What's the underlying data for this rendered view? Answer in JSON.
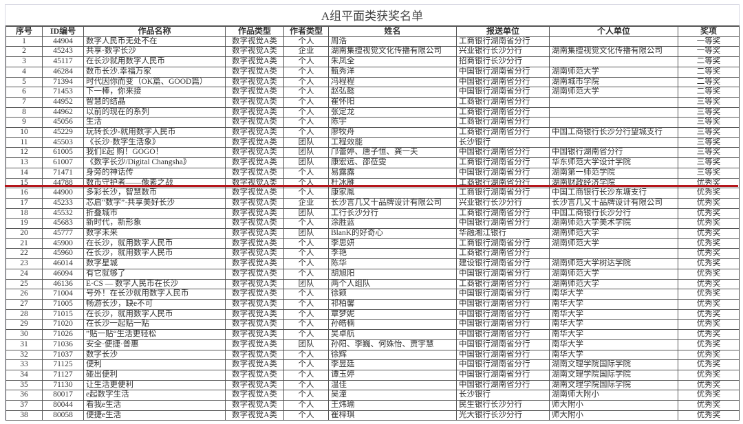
{
  "title": "A组平面类获奖名单",
  "headers": [
    "序号",
    "ID编号",
    "作品名称",
    "作品类型",
    "作者类型",
    "姓名",
    "报送单位",
    "个人单位",
    "奖项"
  ],
  "highlight_color": "#b5161b",
  "rows": [
    [
      "1",
      "44904",
      "数字人民币无处不在",
      "数字视觉A类",
      "个人",
      "周浩",
      "工商银行湖南省分行",
      "",
      "一等奖"
    ],
    [
      "2",
      "45243",
      "共享·数字长沙",
      "数字视觉A类",
      "企业",
      "湖南集擅视觉文化传播有限公司",
      "兴业银行长沙分行",
      "湖南集擅视觉文化传播有限公司",
      "一等奖"
    ],
    [
      "3",
      "45117",
      "在长沙就用数字人民币",
      "数字视觉A类",
      "个人",
      "朱凤全",
      "招商银行长沙分行",
      "",
      "二等奖"
    ],
    [
      "4",
      "46284",
      "数币长沙.幸福万家",
      "数字视觉A类",
      "个人",
      "甄秀洋",
      "中国银行湖南省分行",
      "湖南师范大学",
      "二等奖"
    ],
    [
      "5",
      "71394",
      "时代因你而变（OK篇、GOOD篇）",
      "数字视觉A类",
      "个人",
      "冯程程",
      "中国银行湖南省分行",
      "湖南城市学院",
      "二等奖"
    ],
    [
      "6",
      "71453",
      "下一棒，你来接",
      "数字视觉A类",
      "个人",
      "赵弘懿",
      "中国银行湖南省分行",
      "湖南师范大学",
      "二等奖"
    ],
    [
      "7",
      "44952",
      "智慧的结晶",
      "数字视觉A类",
      "个人",
      "崔怀阳",
      "工商银行湖南省分行",
      "",
      "三等奖"
    ],
    [
      "8",
      "44962",
      "以前的现在的系列",
      "数字视觉A类",
      "个人",
      "张定龙",
      "工商银行湖南省分行",
      "",
      "三等奖"
    ],
    [
      "9",
      "45056",
      "生活",
      "数字视觉A类",
      "个人",
      "陈宇",
      "工商银行湖南省分行",
      "",
      "三等奖"
    ],
    [
      "10",
      "45229",
      "玩转长沙-就用数字人民币",
      "数字视觉A类",
      "个人",
      "廖牧舟",
      "工商银行湖南省分行",
      "中国工商银行长沙分行望城支行",
      "三等奖"
    ],
    [
      "11",
      "45503",
      "《长沙·数字生活象》",
      "数字视觉A类",
      "团队",
      "工程效能",
      "长沙银行",
      "",
      "三等奖"
    ],
    [
      "12",
      "61005",
      "我们E起 购！GOGO！",
      "数字视觉A类",
      "团队",
      "邝蕾婷、唐子恒、龚一夫",
      "中国银行湖南省分行",
      "中国银行湖南省分行",
      "三等奖"
    ],
    [
      "13",
      "61007",
      "《数字长沙/Digital Changsha》",
      "数字视觉A类",
      "团队",
      "康宏远、邵莅雯",
      "工商银行湖南省分行",
      "华东师范大学设计学院",
      "三等奖"
    ],
    [
      "14",
      "71471",
      "身旁的神话传",
      "数字视觉A类",
      "个人",
      "易露露",
      "中国银行湖南省分行",
      "湖南第一师范学院",
      "三等奖"
    ],
    [
      "15",
      "44788",
      "数币守护者——像素之战",
      "数字视觉A类",
      "个人",
      "杜冰雁",
      "工商银行湖南省分行",
      "湖南财政经济学院",
      "优秀奖"
    ],
    [
      "16",
      "44900",
      "多彩长沙，智慧数币",
      "数字视觉A类",
      "个人",
      "康家胤",
      "工商银行湖南省分行",
      "中国工商银行长沙东塘支行",
      "优秀奖"
    ],
    [
      "17",
      "45233",
      "芯启“数字”·共享美好长沙",
      "数字视觉A类",
      "企业",
      "长沙言几又十品牌设计有限公司",
      "兴业银行长沙分行",
      "长沙言几又十品牌设计有限公司",
      "优秀奖"
    ],
    [
      "18",
      "45532",
      "折叠城市",
      "数字视觉A类",
      "团队",
      "工行长沙分行",
      "工商银行湖南省分行",
      "中国工商银行长沙分行",
      "优秀奖"
    ],
    [
      "19",
      "45683",
      "新时代，新形象",
      "数字视觉A类",
      "个人",
      "涂胜蓝",
      "中国银行湖南省分行",
      "湖南师范大学美术学院",
      "优秀奖"
    ],
    [
      "20",
      "45777",
      "数字未来",
      "数字视觉A类",
      "团队",
      "BlanK的好奇心",
      "华融湘江银行",
      "湖南师范大学",
      "优秀奖"
    ],
    [
      "21",
      "45900",
      "在长沙，就用数字人民币",
      "数字视觉A类",
      "个人",
      "李思妍",
      "工商银行湖南省分行",
      "湖南师范大学",
      "优秀奖"
    ],
    [
      "22",
      "45960",
      "在长沙，就用数字人民币",
      "数字视觉A类",
      "个人",
      "李艳",
      "工商银行湖南省分行",
      "",
      "优秀奖"
    ],
    [
      "23",
      "46014",
      "数字星城",
      "数字视觉A类",
      "个人",
      "陈华",
      "建设银行湖南省分行",
      "湖南师范大学树达学院",
      "优秀奖"
    ],
    [
      "24",
      "46094",
      "有它就够了",
      "数字视觉A类",
      "个人",
      "胡旭阳",
      "中国银行湖南省分行",
      "湖南师范大学",
      "优秀奖"
    ],
    [
      "25",
      "46136",
      "E·CS — 数字人民币在长沙",
      "数字视觉A类",
      "团队",
      "两个人组队",
      "工商银行湖南省分行",
      "湖南师范大学",
      "优秀奖"
    ],
    [
      "26",
      "71004",
      "号外！在长沙就用数字人民币",
      "数字视觉A类",
      "个人",
      "徐颖",
      "中国银行湖南省分行",
      "南华大学",
      "优秀奖"
    ],
    [
      "27",
      "71005",
      "畅游长沙，缺e不可",
      "数字视觉A类",
      "个人",
      "祁柏馨",
      "中国银行湖南省分行",
      "南华大学",
      "优秀奖"
    ],
    [
      "28",
      "71015",
      "在长沙，就用数字人民币",
      "数字视觉A类",
      "个人",
      "覃梦妮",
      "中国银行湖南省分行",
      "南华大学",
      "优秀奖"
    ],
    [
      "29",
      "71020",
      "在长沙一起贴一贴",
      "数字视觉A类",
      "个人",
      "孙皓楠",
      "中国银行湖南省分行",
      "南华大学",
      "优秀奖"
    ],
    [
      "30",
      "71026",
      "”贴一贴“生活更轻松",
      "数字视觉A类",
      "个人",
      "吴卓航",
      "中国银行湖南省分行",
      "南华大学",
      "优秀奖"
    ],
    [
      "31",
      "71036",
      "安全·便捷·普惠",
      "数字视觉A类",
      "团队",
      "孙阳、李巍、何姝怡、贾宇慧",
      "中国银行湖南省分行",
      "南华大学",
      "优秀奖"
    ],
    [
      "32",
      "71037",
      "数字长沙",
      "数字视觉A类",
      "个人",
      "徐辉",
      "中国银行湖南省分行",
      "南华大学",
      "优秀奖"
    ],
    [
      "33",
      "71125",
      "便利",
      "数字视觉A类",
      "个人",
      "李昱廷",
      "中国银行湖南省分行",
      "湖南文理学院国际学院",
      "优秀奖"
    ],
    [
      "34",
      "71127",
      "碰出便利",
      "数字视觉A类",
      "个人",
      "谭玉婷",
      "中国银行湖南省分行",
      "湖南文理学院国际学院",
      "优秀奖"
    ],
    [
      "35",
      "71130",
      "让生活更便利",
      "数字视觉A类",
      "个人",
      "温佳",
      "中国银行湖南省分行",
      "湖南文理学院国际学院",
      "优秀奖"
    ],
    [
      "36",
      "80017",
      "e起数字生活",
      "数字视觉A类",
      "个人",
      "吴潼",
      "长沙银行",
      "湖南师大附小",
      "优秀奖"
    ],
    [
      "37",
      "80044",
      "看我e生活",
      "数字视觉A类",
      "个人",
      "王炜瑜",
      "民生银行长沙分行",
      "师大附小",
      "优秀奖"
    ],
    [
      "38",
      "80058",
      "便捷e生活",
      "数字视觉A类",
      "个人",
      "崔梓琪",
      "光大银行长沙分行",
      "师大附小",
      "优秀奖"
    ]
  ]
}
